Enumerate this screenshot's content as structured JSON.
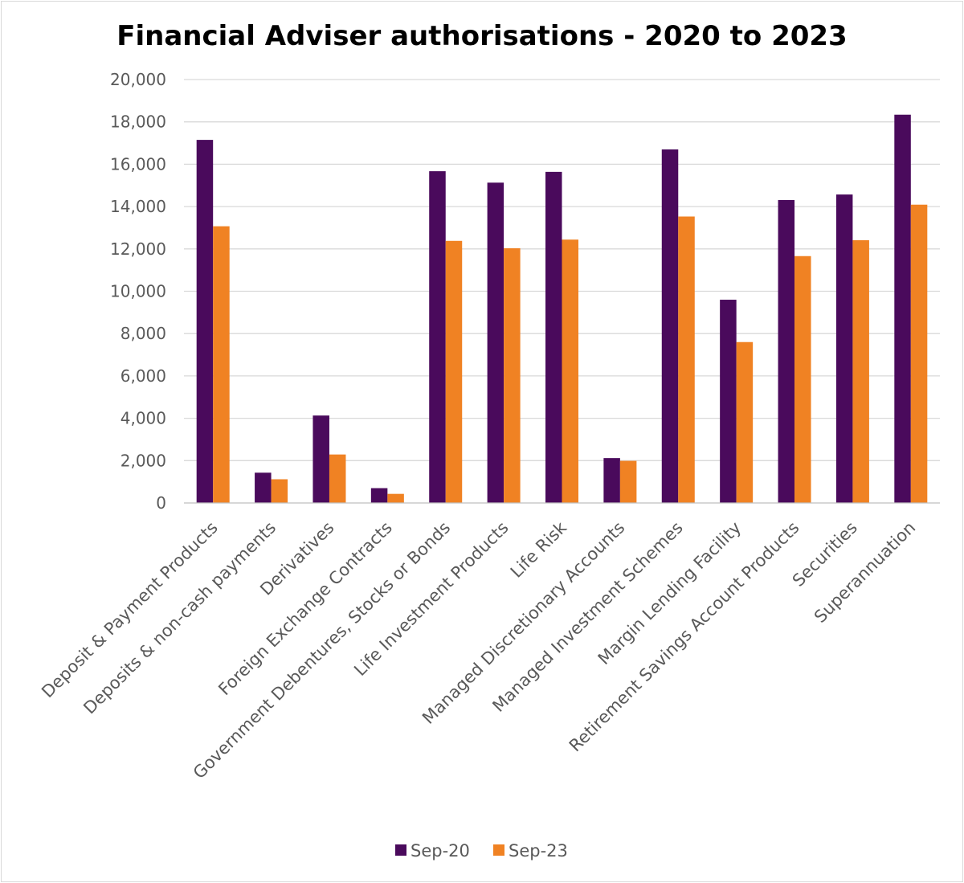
{
  "chart_data": {
    "type": "bar",
    "title": "Financial Adviser authorisations - 2020 to 2023",
    "xlabel": "",
    "ylabel": "",
    "ylim": [
      0,
      20000
    ],
    "yticks": [
      0,
      2000,
      4000,
      6000,
      8000,
      10000,
      12000,
      14000,
      16000,
      18000,
      20000
    ],
    "ytick_labels": [
      "0",
      "2,000",
      "4,000",
      "6,000",
      "8,000",
      "10,000",
      "12,000",
      "14,000",
      "16,000",
      "18,000",
      "20,000"
    ],
    "grid": true,
    "legend_position": "bottom",
    "categories": [
      "Deposit & Payment Products",
      "Deposits & non-cash payments",
      "Derivatives",
      "Foreign Exchange Contracts",
      "Government Debentures, Stocks or Bonds",
      "Life Investment Products",
      "Life Risk",
      "Managed Discretionary Accounts",
      "Managed Investment Schemes",
      "Margin Lending Facility",
      "Retirement Savings Account Products",
      "Securities",
      "Superannuation"
    ],
    "series": [
      {
        "name": "Sep-20",
        "color": "#4a0a5c",
        "values": [
          17150,
          1430,
          4130,
          700,
          15670,
          15130,
          15640,
          2120,
          16700,
          9600,
          14310,
          14570,
          18340
        ]
      },
      {
        "name": "Sep-23",
        "color": "#f08223",
        "values": [
          13070,
          1120,
          2290,
          430,
          12380,
          12030,
          12440,
          1990,
          13530,
          7600,
          11660,
          12410,
          14090
        ]
      }
    ]
  }
}
